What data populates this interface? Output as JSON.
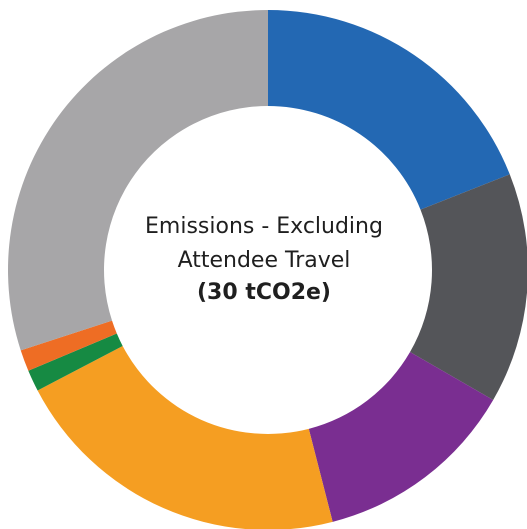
{
  "chart_data": {
    "type": "pie",
    "donut": true,
    "title": "",
    "center_text": {
      "line1": "Emissions - Excluding",
      "line2": "Attendee Travel",
      "line3": "(30 tCO2e)"
    },
    "unit": "tCO2e",
    "total": 30,
    "start_angle_deg": 0,
    "direction": "clockwise",
    "slices": [
      {
        "value": 5.7,
        "color": "#2368b3"
      },
      {
        "value": 4.3,
        "color": "#545559"
      },
      {
        "value": 3.8,
        "color": "#7a2e91"
      },
      {
        "value": 6.4,
        "color": "#f59e22"
      },
      {
        "value": 0.4,
        "color": "#168a43"
      },
      {
        "value": 0.4,
        "color": "#ee6d24"
      },
      {
        "value": 9.0,
        "color": "#a7a6a8"
      }
    ],
    "grid": false,
    "legend": "none"
  }
}
